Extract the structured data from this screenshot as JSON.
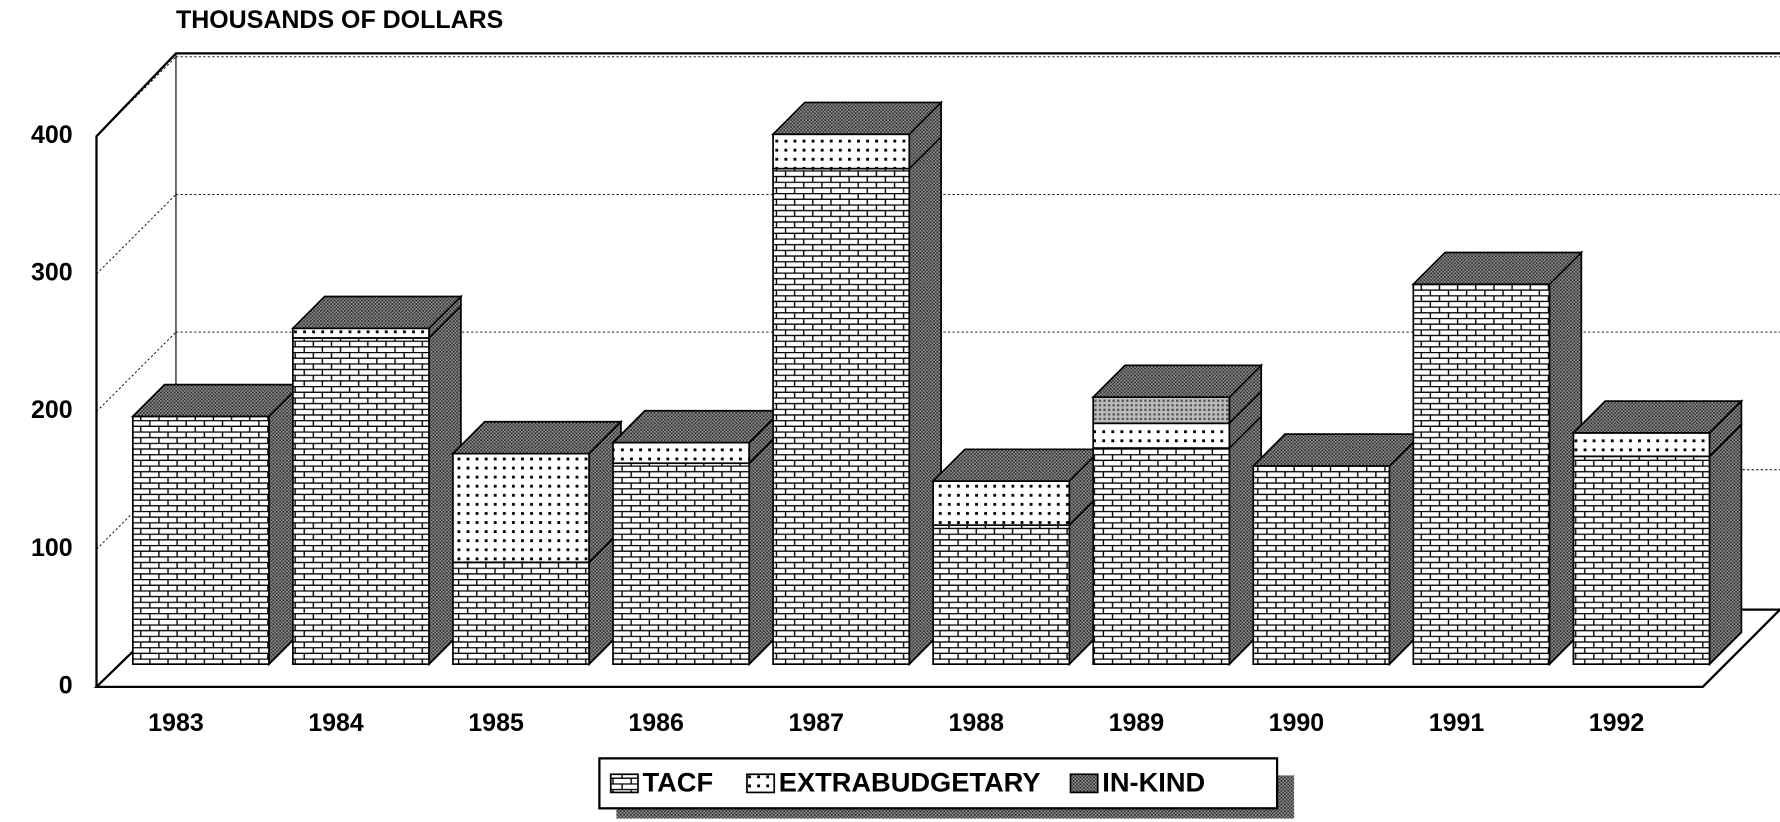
{
  "chart_data": {
    "type": "bar3d_stacked",
    "y_axis_label": "THOUSANDS OF DOLLARS",
    "categories": [
      "1983",
      "1984",
      "1985",
      "1986",
      "1987",
      "1988",
      "1989",
      "1990",
      "1991",
      "1992"
    ],
    "series": [
      {
        "name": "TACF",
        "color": "#ffffff",
        "values": [
          180,
          237,
          74,
          146,
          360,
          101,
          157,
          144,
          276,
          151
        ]
      },
      {
        "name": "EXTRABUDGETARY",
        "color": "#ffffff",
        "values": [
          0,
          7,
          79,
          15,
          25,
          32,
          18,
          0,
          0,
          17
        ]
      },
      {
        "name": "IN-KIND",
        "color": "#777777",
        "values": [
          0,
          0,
          0,
          0,
          0,
          0,
          19,
          0,
          0,
          0
        ]
      }
    ],
    "ylim": [
      0,
      400
    ],
    "yticks": [
      0,
      100,
      200,
      300,
      400
    ],
    "grid": true,
    "legend": "bottom"
  }
}
